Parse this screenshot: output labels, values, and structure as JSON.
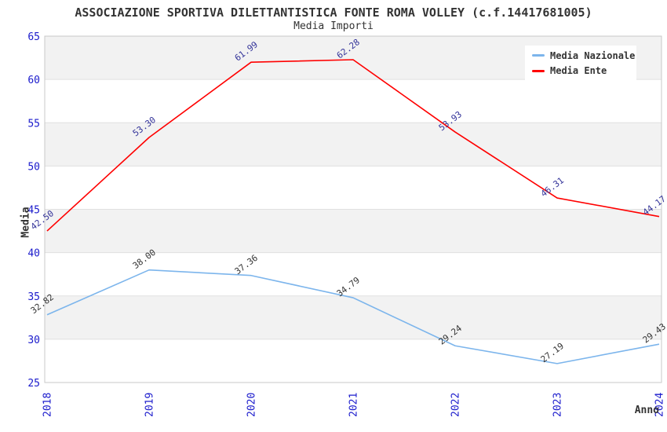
{
  "chart_data": {
    "type": "line",
    "title": "ASSOCIAZIONE SPORTIVA DILETTANTISTICA FONTE ROMA VOLLEY (c.f.14417681005)",
    "subtitle": "Media Importi",
    "xlabel": "Anno",
    "ylabel": "Media",
    "categories": [
      "2018",
      "2019",
      "2020",
      "2021",
      "2022",
      "2023",
      "2024"
    ],
    "series": [
      {
        "name": "Media Nazionale",
        "color": "#7cb5ec",
        "label_color": "#333333",
        "values": [
          32.82,
          38.0,
          37.36,
          34.79,
          29.24,
          27.19,
          29.43
        ]
      },
      {
        "name": "Media Ente",
        "color": "#ff0000",
        "label_color": "#333399",
        "values": [
          42.5,
          53.3,
          61.99,
          62.28,
          53.93,
          46.31,
          44.17
        ]
      }
    ],
    "ylim": [
      25,
      65
    ],
    "ytick_step": 5,
    "grid": true,
    "alternate_band_color": "#f2f2f2",
    "gridline_color": "#e0e0e0",
    "plot_border_color": "#c8c8c8",
    "axis_tick_label_color": "#1a1acc",
    "legend_position": "top-right",
    "x_tick_rotation": -90,
    "data_label_rotation": -37,
    "data_label_decimals": 2
  }
}
